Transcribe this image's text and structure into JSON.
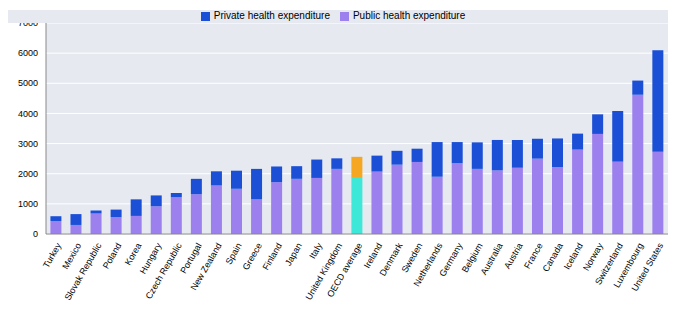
{
  "chart_data": {
    "type": "bar",
    "stacked": true,
    "legend": "top",
    "grid": true,
    "categories": [
      "Turkey",
      "Mexico",
      "Slovak Republic",
      "Poland",
      "Korea",
      "Hungary",
      "Czech Republic",
      "Portugal",
      "New Zealand",
      "Spain",
      "Greece",
      "Finland",
      "Japan",
      "Italy",
      "United Kingdom",
      "OECD average",
      "Ireland",
      "Denmark",
      "Sweden",
      "Netherlands",
      "Germany",
      "Belgium",
      "Australia",
      "Austria",
      "France",
      "Canada",
      "Iceland",
      "Norway",
      "Switzerland",
      "Luxembourg",
      "United States"
    ],
    "series": [
      {
        "name": "Public health expenditure",
        "color": "#9c80ee",
        "colors": [
          "#9c80ee",
          "#9c80ee",
          "#9c80ee",
          "#9c80ee",
          "#9c80ee",
          "#9c80ee",
          "#9c80ee",
          "#9c80ee",
          "#9c80ee",
          "#9c80ee",
          "#9c80ee",
          "#9c80ee",
          "#9c80ee",
          "#9c80ee",
          "#9c80ee",
          "#3de8d8",
          "#9c80ee",
          "#9c80ee",
          "#9c80ee",
          "#9c80ee",
          "#9c80ee",
          "#9c80ee",
          "#9c80ee",
          "#9c80ee",
          "#9c80ee",
          "#9c80ee",
          "#9c80ee",
          "#9c80ee",
          "#9c80ee",
          "#9c80ee",
          "#9c80ee"
        ],
        "values": [
          430,
          300,
          680,
          560,
          600,
          920,
          1220,
          1320,
          1610,
          1500,
          1150,
          1720,
          1830,
          1860,
          2160,
          1860,
          2070,
          2300,
          2390,
          1900,
          2350,
          2160,
          2110,
          2200,
          2500,
          2220,
          2800,
          3320,
          2400,
          4620,
          2730
        ]
      },
      {
        "name": "Private health expenditure",
        "color": "#1a4fd6",
        "colors": [
          "#1a4fd6",
          "#1a4fd6",
          "#1a4fd6",
          "#1a4fd6",
          "#1a4fd6",
          "#1a4fd6",
          "#1a4fd6",
          "#1a4fd6",
          "#1a4fd6",
          "#1a4fd6",
          "#1a4fd6",
          "#1a4fd6",
          "#1a4fd6",
          "#1a4fd6",
          "#1a4fd6",
          "#f5a623",
          "#1a4fd6",
          "#1a4fd6",
          "#1a4fd6",
          "#1a4fd6",
          "#1a4fd6",
          "#1a4fd6",
          "#1a4fd6",
          "#1a4fd6",
          "#1a4fd6",
          "#1a4fd6",
          "#1a4fd6",
          "#1a4fd6",
          "#1a4fd6",
          "#1a4fd6",
          "#1a4fd6"
        ],
        "values": [
          160,
          360,
          100,
          250,
          550,
          360,
          140,
          510,
          470,
          600,
          1010,
          520,
          420,
          610,
          350,
          700,
          530,
          460,
          440,
          1150,
          700,
          880,
          1010,
          920,
          660,
          950,
          530,
          650,
          1680,
          470,
          3370
        ]
      }
    ],
    "ylim": [
      0,
      7000
    ],
    "yticks": [
      0,
      1000,
      2000,
      3000,
      4000,
      5000,
      6000,
      7000
    ]
  }
}
